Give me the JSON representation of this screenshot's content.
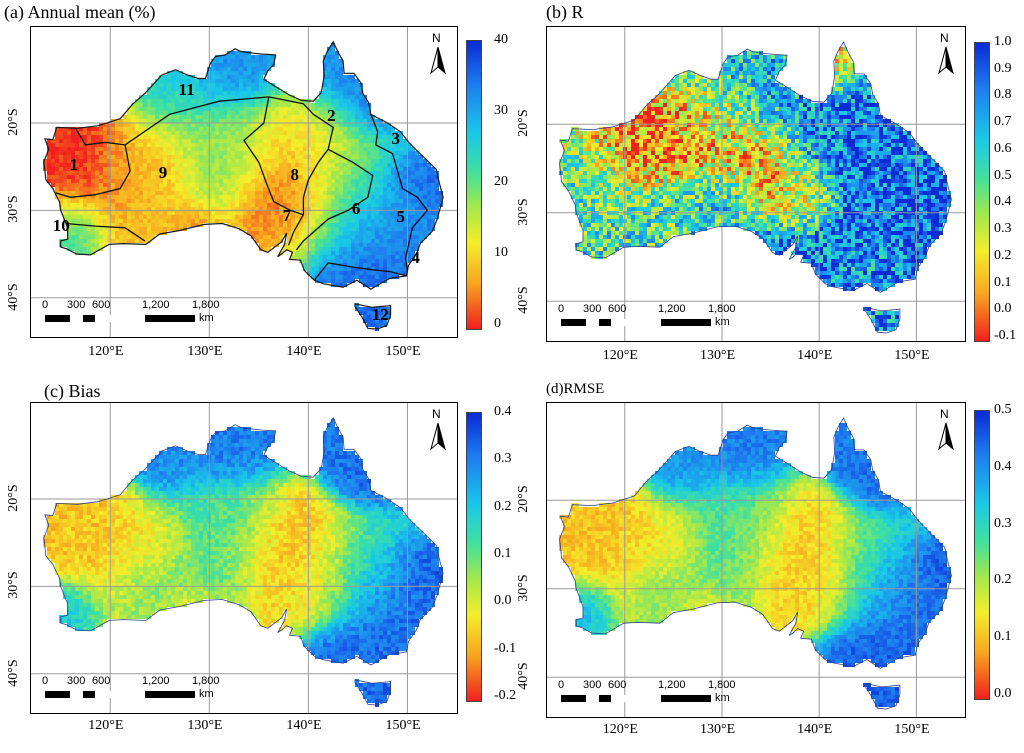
{
  "panels": [
    {
      "id": "a",
      "title": "(a) Annual mean (%)",
      "colorbar": [
        "40",
        "30",
        "20",
        "10",
        "0"
      ]
    },
    {
      "id": "b",
      "title": "(b) R",
      "colorbar": [
        "1.0",
        "0.9",
        "0.8",
        "0.7",
        "0.6",
        "0.5",
        "0.4",
        "0.3",
        "0.2",
        "0.1",
        "0.0",
        "-0.1"
      ]
    },
    {
      "id": "c",
      "title": "(c) Bias",
      "colorbar": [
        "0.4",
        "0.3",
        "0.2",
        "0.1",
        "0.0",
        "-0.1",
        "-0.2"
      ]
    },
    {
      "id": "d",
      "title": "(d)RMSE",
      "colorbar": [
        "0.5",
        "0.4",
        "0.3",
        "0.2",
        "0.1",
        "0.0"
      ]
    }
  ],
  "axes": {
    "lon_ticks": [
      "120°E",
      "130°E",
      "140°E",
      "150°E"
    ],
    "lat_ticks": [
      "20°S",
      "30°S",
      "40°S"
    ]
  },
  "north_label": "N",
  "scale_bar": {
    "ticks": [
      "0",
      "300",
      "600",
      "1,200",
      "1,800"
    ],
    "unit": "km"
  },
  "regions": [
    "1",
    "2",
    "3",
    "4",
    "5",
    "6",
    "7",
    "8",
    "9",
    "10",
    "11",
    "12"
  ],
  "colors": {
    "high": "#0a2bd6",
    "mid_high": "#19c8e8",
    "mid": "#a6e84a",
    "mid_low": "#f4ee2a",
    "low": "#f21f1f"
  }
}
